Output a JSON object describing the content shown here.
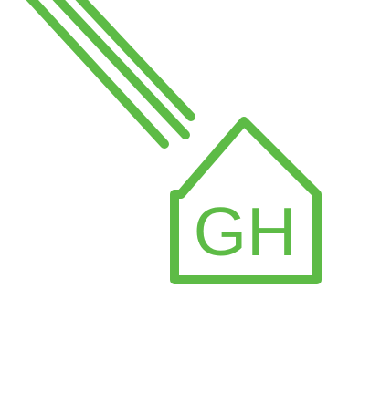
{
  "logo": {
    "monogram": "GH",
    "accent_color": "#5dbb46",
    "background_color": "#ffffff",
    "icons": [
      "diagonal-lines-icon",
      "house-outline-icon"
    ]
  }
}
